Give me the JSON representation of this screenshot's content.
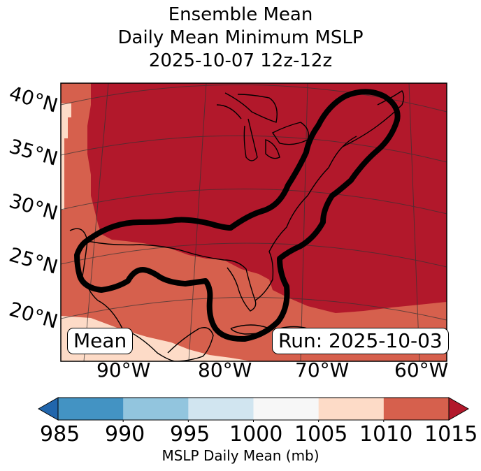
{
  "title": {
    "line1": "Ensemble Mean",
    "line2": "Daily Mean Minimum MSLP",
    "line3": "2025-10-07 12z-12z"
  },
  "map": {
    "lat_labels": [
      "40°N",
      "35°N",
      "30°N",
      "25°N",
      "20°N"
    ],
    "lon_labels": [
      "90°W",
      "80°W",
      "70°W",
      "60°W"
    ],
    "left_box": "Mean",
    "right_box": "Run: 2025-10-03",
    "region": "Gulf of Mexico / US East Coast",
    "contour": "bold black outline of ensemble area from Gulf coast to Canadian Maritimes"
  },
  "colorbar": {
    "ticks": [
      "985",
      "990",
      "995",
      "1000",
      "1005",
      "1010",
      "1015"
    ],
    "label": "MSLP Daily Mean (mb)",
    "colors": [
      "#2166ac",
      "#4393c3",
      "#92c5de",
      "#d1e5f0",
      "#f7f7f7",
      "#fddbc7",
      "#d6604d",
      "#b2182b"
    ]
  },
  "chart_data": {
    "type": "heatmap",
    "title": "Ensemble Mean Daily Mean Minimum MSLP 2025-10-07 12z-12z",
    "variable": "MSLP Daily Mean",
    "units": "mb",
    "levels": [
      985,
      990,
      995,
      1000,
      1005,
      1010,
      1015
    ],
    "extend": "both",
    "lat_range": [
      15,
      42
    ],
    "lon_range": [
      -97,
      -58
    ],
    "regions": [
      {
        "area": "eastern US, Great Lakes, Atlantic north of ~25°N",
        "range": ">1015",
        "color": "#b2182b"
      },
      {
        "area": "Gulf of Mexico, Florida, Caribbean, southern Texas",
        "range": "1010-1015",
        "color": "#d6604d"
      },
      {
        "area": "Mexico south of ~22°N, far western edge",
        "range": "1005-1010",
        "color": "#fddbc7"
      }
    ]
  }
}
